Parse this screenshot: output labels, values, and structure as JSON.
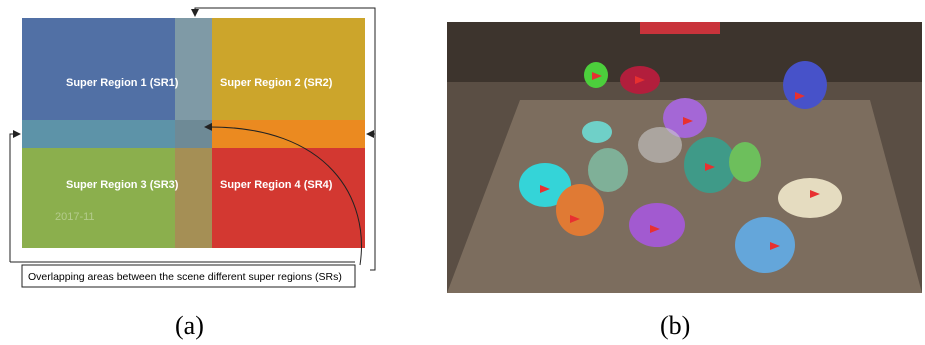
{
  "panel_a": {
    "regions": [
      "Super Region 1 (SR1)",
      "Super Region 2 (SR2)",
      "Super Region 3 (SR3)",
      "Super Region 4 (SR4)"
    ],
    "timestamp": "2017-11",
    "caption": "Overlapping areas between the scene different super regions (SRs)",
    "label": "(a)"
  },
  "panel_b": {
    "label": "(b)"
  }
}
